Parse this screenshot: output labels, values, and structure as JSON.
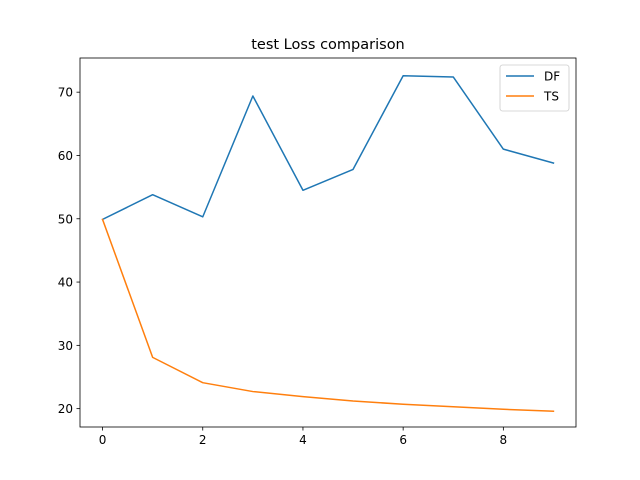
{
  "chart_data": {
    "type": "line",
    "title": "test Loss comparison",
    "xlabel": "",
    "ylabel": "",
    "x": [
      0,
      1,
      2,
      3,
      4,
      5,
      6,
      7,
      8,
      9
    ],
    "xlim": [
      -0.45,
      9.45
    ],
    "ylim": [
      17.1,
      75.4
    ],
    "xticks": [
      0,
      2,
      4,
      6,
      8
    ],
    "yticks": [
      20,
      30,
      40,
      50,
      60,
      70
    ],
    "grid": false,
    "legend": "top-right",
    "series": [
      {
        "name": "DF",
        "color": "#1f77b4",
        "values": [
          49.9,
          53.8,
          50.3,
          69.4,
          54.5,
          57.8,
          72.6,
          72.4,
          61.0,
          58.8
        ]
      },
      {
        "name": "TS",
        "color": "#ff7f0e",
        "values": [
          49.9,
          28.1,
          24.1,
          22.7,
          21.9,
          21.2,
          20.7,
          20.3,
          19.9,
          19.6
        ]
      }
    ]
  }
}
